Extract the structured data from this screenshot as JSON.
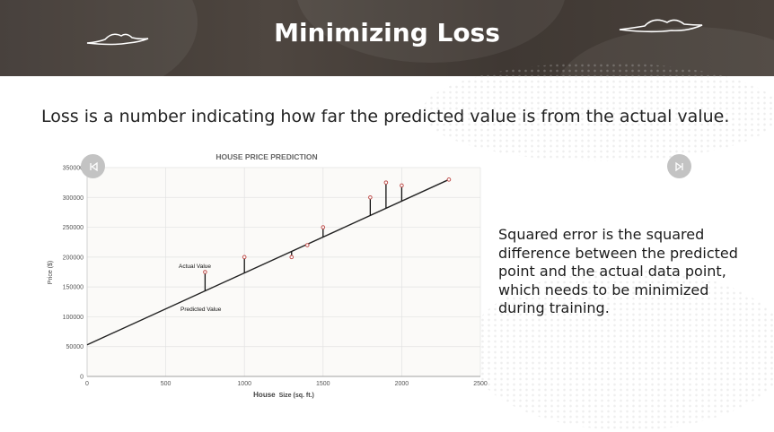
{
  "slide": {
    "title": "Minimizing Loss",
    "subtitle": "Loss is a number indicating how far the predicted value is from the actual value.",
    "side_text": "Squared error is the squared difference between the predicted point and the actual data point, which needs to be minimized during training.",
    "prev_icon": "skip-back-icon",
    "next_icon": "skip-forward-icon"
  },
  "colors": {
    "header_bg": "#45403a",
    "point": "#c0504d",
    "line": "#222222",
    "error_bar": "#111111",
    "nav": "#c3c3c3"
  },
  "chart_data": {
    "type": "scatter",
    "title": "HOUSE PRICE PREDICTION",
    "xlabel_bold": "House",
    "xlabel_rest": "Size (sq. ft.)",
    "ylabel": "Price ($)",
    "xlim": [
      0,
      2500
    ],
    "ylim": [
      0,
      350000
    ],
    "xticks": [
      0,
      500,
      1000,
      1500,
      2000,
      2500
    ],
    "yticks": [
      0,
      50000,
      100000,
      150000,
      200000,
      250000,
      300000,
      350000
    ],
    "grid": true,
    "regression_line": {
      "x": [
        0,
        2300
      ],
      "y": [
        53000,
        330000
      ]
    },
    "points": [
      {
        "x": 750,
        "y": 175000
      },
      {
        "x": 1000,
        "y": 200000
      },
      {
        "x": 1300,
        "y": 200000
      },
      {
        "x": 1400,
        "y": 220000
      },
      {
        "x": 1500,
        "y": 250000
      },
      {
        "x": 1800,
        "y": 300000
      },
      {
        "x": 1900,
        "y": 325000
      },
      {
        "x": 2000,
        "y": 320000
      },
      {
        "x": 2300,
        "y": 330000
      }
    ],
    "annotations": {
      "actual": "Actual Value",
      "predicted": "Predicted Value"
    }
  }
}
